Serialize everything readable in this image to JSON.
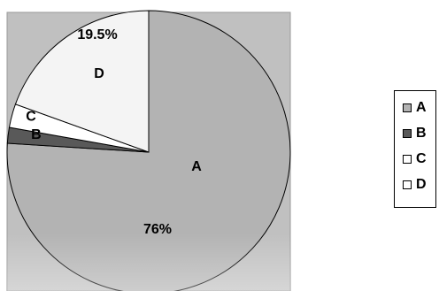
{
  "chart_data": {
    "type": "pie",
    "title": "",
    "slices": [
      {
        "label": "A",
        "value": 76,
        "data_label": "76%",
        "color": "#b3b3b3"
      },
      {
        "label": "B",
        "value": 1.8,
        "data_label": "",
        "color": "#595959"
      },
      {
        "label": "C",
        "value": 2.7,
        "data_label": "",
        "color": "#ffffff"
      },
      {
        "label": "D",
        "value": 19.5,
        "data_label": "19.5%",
        "color": "#f4f4f4"
      }
    ],
    "legend": {
      "position": "right",
      "entries": [
        "A",
        "B",
        "C",
        "D"
      ]
    },
    "start_angle_deg": 0,
    "direction": "clockwise"
  },
  "colors": {
    "plot_background": "#c0c0c0",
    "slice_border": "#000000"
  }
}
